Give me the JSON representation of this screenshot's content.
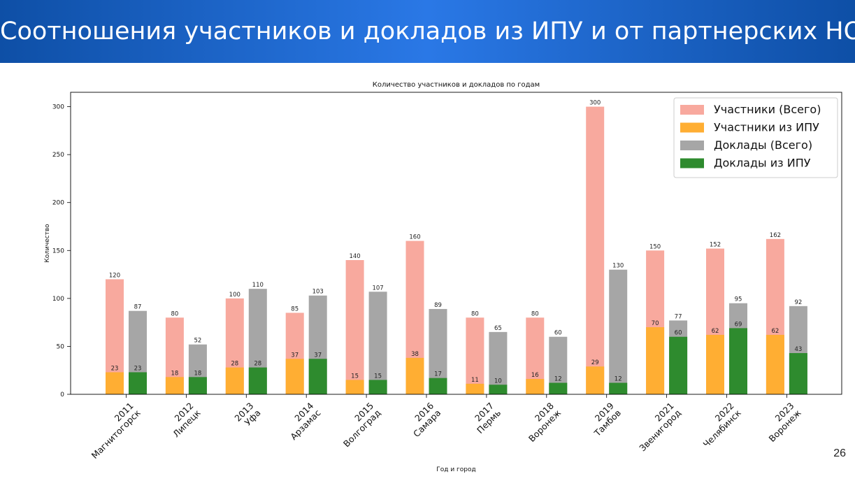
{
  "slide": {
    "title": "Соотношения участников и докладов из ИПУ и от партнерских НОЦ",
    "page_number": "26"
  },
  "chart_data": {
    "type": "bar",
    "title": "Количество участников и докладов по годам",
    "xlabel": "Год и город",
    "ylabel": "Количество",
    "ylim": [
      0,
      315
    ],
    "yticks": [
      0,
      50,
      100,
      150,
      200,
      250,
      300
    ],
    "grid": false,
    "legend_position": "top-right",
    "categories": [
      {
        "year": "2011",
        "city": "Магнитогорск"
      },
      {
        "year": "2012",
        "city": "Липецк"
      },
      {
        "year": "2013",
        "city": "Уфа"
      },
      {
        "year": "2014",
        "city": "Арзамас"
      },
      {
        "year": "2015",
        "city": "Волгоград"
      },
      {
        "year": "2016",
        "city": "Самара"
      },
      {
        "year": "2017",
        "city": "Пермь"
      },
      {
        "year": "2018",
        "city": "Воронеж"
      },
      {
        "year": "2019",
        "city": "Тамбов"
      },
      {
        "year": "2021",
        "city": "Звенигород"
      },
      {
        "year": "2022",
        "city": "Челябинск"
      },
      {
        "year": "2023",
        "city": "Воронеж"
      }
    ],
    "series": [
      {
        "name": "Участники (Всего)",
        "color": "#f8a99e",
        "values": [
          120,
          80,
          100,
          85,
          140,
          160,
          80,
          80,
          300,
          150,
          152,
          162
        ]
      },
      {
        "name": "Участники из ИПУ",
        "color": "#ffae33",
        "values": [
          23,
          18,
          28,
          37,
          15,
          38,
          11,
          16,
          29,
          70,
          62,
          62
        ]
      },
      {
        "name": "Доклады (Всего)",
        "color": "#a6a6a6",
        "values": [
          87,
          52,
          110,
          103,
          107,
          89,
          65,
          60,
          130,
          77,
          95,
          92
        ]
      },
      {
        "name": "Доклады из ИПУ",
        "color": "#2e8b2e",
        "values": [
          23,
          18,
          28,
          37,
          15,
          17,
          10,
          12,
          12,
          60,
          69,
          43
        ]
      }
    ]
  }
}
